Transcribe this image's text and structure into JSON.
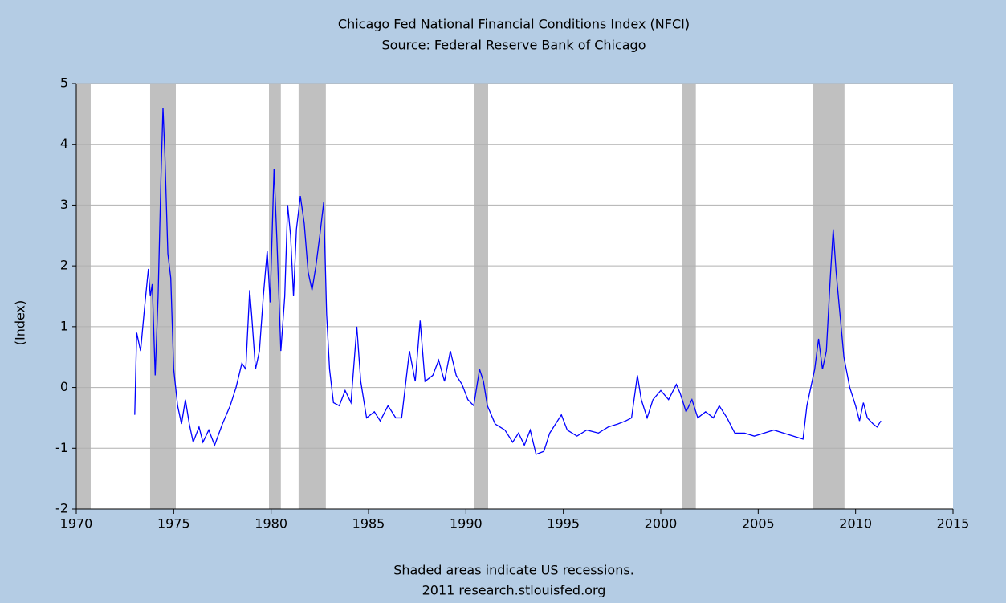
{
  "chart_data": {
    "type": "line",
    "title": "Chicago Fed National Financial Conditions Index (NFCI)",
    "subtitle": "Source: Federal Reserve Bank of Chicago",
    "y_label": "(Index)",
    "note": "Shaded areas indicate US recessions.",
    "credit": "2011 research.stlouisfed.org",
    "color": "#0000ff",
    "shade_color": "#c0c0c0",
    "grid": true,
    "xlim": [
      1970,
      2015
    ],
    "xticks": [
      1970,
      1975,
      1980,
      1985,
      1990,
      1995,
      2000,
      2005,
      2010,
      2015
    ],
    "ylim": [
      -2,
      5
    ],
    "yticks": [
      -2,
      -1,
      0,
      1,
      2,
      3,
      4,
      5
    ],
    "recessions": [
      [
        1970,
        1970.74
      ],
      [
        1973.79,
        1975.11
      ],
      [
        1979.89,
        1980.5
      ],
      [
        1981.41,
        1982.81
      ],
      [
        1990.44,
        1991.14
      ],
      [
        2001.1,
        2001.8
      ],
      [
        2007.82,
        2009.43
      ]
    ],
    "x": [
      1973.0,
      1973.1,
      1973.3,
      1973.5,
      1973.7,
      1973.8,
      1973.9,
      1974.05,
      1974.2,
      1974.35,
      1974.45,
      1974.55,
      1974.7,
      1974.85,
      1975.0,
      1975.2,
      1975.4,
      1975.6,
      1975.8,
      1976.0,
      1976.3,
      1976.5,
      1976.8,
      1977.1,
      1977.5,
      1977.9,
      1978.2,
      1978.5,
      1978.7,
      1978.9,
      1979.0,
      1979.2,
      1979.4,
      1979.6,
      1979.8,
      1979.95,
      1980.15,
      1980.3,
      1980.5,
      1980.7,
      1980.85,
      1981.0,
      1981.15,
      1981.3,
      1981.5,
      1981.7,
      1981.9,
      1982.1,
      1982.3,
      1982.5,
      1982.7,
      1982.85,
      1983.0,
      1983.2,
      1983.5,
      1983.8,
      1984.1,
      1984.4,
      1984.6,
      1984.9,
      1985.3,
      1985.6,
      1986.0,
      1986.4,
      1986.7,
      1987.1,
      1987.4,
      1987.65,
      1987.9,
      1988.3,
      1988.6,
      1988.9,
      1989.2,
      1989.5,
      1989.8,
      1990.1,
      1990.4,
      1990.7,
      1990.9,
      1991.1,
      1991.5,
      1992.0,
      1992.4,
      1992.7,
      1993.0,
      1993.3,
      1993.6,
      1994.0,
      1994.3,
      1994.6,
      1994.9,
      1995.2,
      1995.7,
      1996.2,
      1996.8,
      1997.3,
      1997.8,
      1998.2,
      1998.5,
      1998.8,
      1999.0,
      1999.3,
      1999.6,
      2000.0,
      2000.4,
      2000.8,
      2001.0,
      2001.3,
      2001.6,
      2001.9,
      2002.3,
      2002.7,
      2003.0,
      2003.4,
      2003.8,
      2004.3,
      2004.8,
      2005.3,
      2005.8,
      2006.3,
      2006.8,
      2007.3,
      2007.5,
      2007.7,
      2007.9,
      2008.1,
      2008.3,
      2008.5,
      2008.7,
      2008.85,
      2009.0,
      2009.2,
      2009.4,
      2009.7,
      2010.0,
      2010.2,
      2010.4,
      2010.6,
      2010.9,
      2011.1,
      2011.3
    ],
    "values": [
      -0.45,
      0.9,
      0.6,
      1.3,
      1.95,
      1.5,
      1.7,
      0.2,
      1.5,
      3.5,
      4.6,
      3.8,
      2.2,
      1.8,
      0.3,
      -0.3,
      -0.6,
      -0.2,
      -0.6,
      -0.9,
      -0.65,
      -0.9,
      -0.7,
      -0.95,
      -0.6,
      -0.3,
      0.0,
      0.4,
      0.3,
      1.6,
      1.2,
      0.3,
      0.6,
      1.5,
      2.25,
      1.4,
      3.6,
      2.4,
      0.6,
      1.5,
      3.0,
      2.5,
      1.5,
      2.6,
      3.15,
      2.7,
      1.9,
      1.6,
      2.0,
      2.5,
      3.05,
      1.2,
      0.3,
      -0.25,
      -0.3,
      -0.05,
      -0.25,
      1.0,
      0.1,
      -0.5,
      -0.4,
      -0.55,
      -0.3,
      -0.5,
      -0.5,
      0.6,
      0.1,
      1.1,
      0.1,
      0.2,
      0.45,
      0.1,
      0.6,
      0.2,
      0.05,
      -0.2,
      -0.3,
      0.3,
      0.1,
      -0.3,
      -0.6,
      -0.7,
      -0.9,
      -0.75,
      -0.95,
      -0.7,
      -1.1,
      -1.05,
      -0.75,
      -0.6,
      -0.45,
      -0.7,
      -0.8,
      -0.7,
      -0.75,
      -0.65,
      -0.6,
      -0.55,
      -0.5,
      0.2,
      -0.2,
      -0.5,
      -0.2,
      -0.05,
      -0.2,
      0.05,
      -0.1,
      -0.4,
      -0.2,
      -0.5,
      -0.4,
      -0.5,
      -0.3,
      -0.5,
      -0.75,
      -0.75,
      -0.8,
      -0.75,
      -0.7,
      -0.75,
      -0.8,
      -0.85,
      -0.3,
      0.0,
      0.3,
      0.8,
      0.3,
      0.6,
      1.8,
      2.6,
      1.9,
      1.2,
      0.5,
      0.0,
      -0.3,
      -0.55,
      -0.25,
      -0.5,
      -0.6,
      -0.65,
      -0.55
    ]
  }
}
